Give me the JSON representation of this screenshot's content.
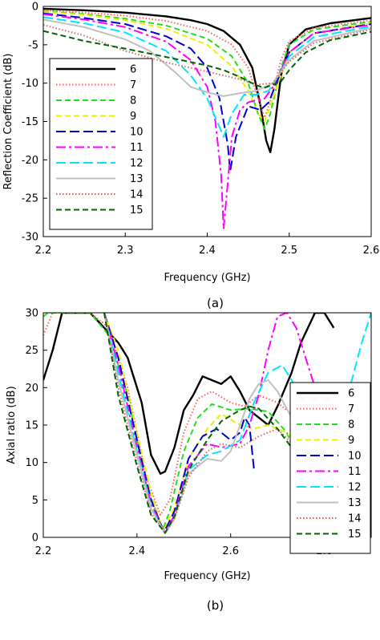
{
  "chart_data": [
    {
      "type": "line",
      "caption": "(a)",
      "xlabel": "Frequency (GHz)",
      "ylabel": "Reflection Coefficient (dB)",
      "xlim": [
        2.2,
        2.6
      ],
      "ylim": [
        -30,
        0
      ],
      "xticks": [
        "2.2",
        "2.3",
        "2.4",
        "2.5",
        "2.6"
      ],
      "yticks": [
        "0",
        "-5",
        "-10",
        "-15",
        "-20",
        "-25",
        "-30"
      ],
      "grid": false,
      "legend_position": "left",
      "series": [
        {
          "name": "6",
          "color": "#000000",
          "dash": "solid",
          "x": [
            2.2,
            2.25,
            2.3,
            2.35,
            2.38,
            2.4,
            2.42,
            2.44,
            2.455,
            2.465,
            2.472,
            2.477,
            2.482,
            2.49,
            2.5,
            2.52,
            2.55,
            2.6
          ],
          "y": [
            -0.3,
            -0.5,
            -0.8,
            -1.3,
            -1.8,
            -2.3,
            -3.2,
            -5,
            -8,
            -13,
            -17.5,
            -19,
            -16,
            -9,
            -5,
            -3,
            -2.2,
            -1.5
          ]
        },
        {
          "name": "7",
          "color": "#ff6060",
          "dash": "dotted",
          "x": [
            2.2,
            2.25,
            2.3,
            2.35,
            2.4,
            2.43,
            2.45,
            2.462,
            2.47,
            2.478,
            2.49,
            2.5,
            2.53,
            2.6
          ],
          "y": [
            -0.5,
            -0.8,
            -1.2,
            -1.9,
            -3.2,
            -5,
            -8,
            -12,
            -14.5,
            -12,
            -7,
            -4.5,
            -2.8,
            -1.8
          ]
        },
        {
          "name": "8",
          "color": "#22dd22",
          "dash": "dashed",
          "x": [
            2.2,
            2.25,
            2.3,
            2.35,
            2.4,
            2.43,
            2.45,
            2.462,
            2.47,
            2.477,
            2.49,
            2.5,
            2.53,
            2.6
          ],
          "y": [
            -0.6,
            -1,
            -1.6,
            -2.5,
            -4.2,
            -6.5,
            -10,
            -14,
            -16,
            -14,
            -8,
            -5,
            -3,
            -2
          ]
        },
        {
          "name": "9",
          "color": "#eeee00",
          "dash": "dashed",
          "x": [
            2.2,
            2.25,
            2.3,
            2.35,
            2.4,
            2.43,
            2.45,
            2.462,
            2.47,
            2.48,
            2.5,
            2.53,
            2.6
          ],
          "y": [
            -0.7,
            -1.1,
            -1.8,
            -2.9,
            -5,
            -7.8,
            -11,
            -14,
            -15,
            -12,
            -6,
            -3.5,
            -2.2
          ]
        },
        {
          "name": "10",
          "color": "#0000cc",
          "dash": "longdash",
          "x": [
            2.2,
            2.25,
            2.3,
            2.35,
            2.38,
            2.4,
            2.415,
            2.425,
            2.428,
            2.435,
            2.45,
            2.465,
            2.475,
            2.49,
            2.5,
            2.53,
            2.6
          ],
          "y": [
            -0.9,
            -1.5,
            -2.3,
            -3.9,
            -5.5,
            -8,
            -12,
            -18,
            -21.5,
            -17,
            -13,
            -13.5,
            -12.5,
            -8.5,
            -6,
            -3.5,
            -2.3
          ]
        },
        {
          "name": "11",
          "color": "#ff00ff",
          "dash": "dashdot",
          "x": [
            2.2,
            2.25,
            2.3,
            2.35,
            2.38,
            2.4,
            2.41,
            2.417,
            2.42,
            2.425,
            2.43,
            2.44,
            2.45,
            2.46,
            2.47,
            2.48,
            2.5,
            2.53,
            2.6
          ],
          "y": [
            -1,
            -1.7,
            -2.7,
            -4.6,
            -7,
            -10.5,
            -15,
            -22,
            -29,
            -23,
            -17,
            -13.5,
            -12.5,
            -12.2,
            -12,
            -10.5,
            -6,
            -3.5,
            -2.4
          ]
        },
        {
          "name": "12",
          "color": "#00e5ff",
          "dash": "longdash",
          "x": [
            2.2,
            2.25,
            2.3,
            2.35,
            2.38,
            2.4,
            2.41,
            2.42,
            2.43,
            2.445,
            2.46,
            2.475,
            2.49,
            2.5,
            2.53,
            2.6
          ],
          "y": [
            -1.4,
            -2.2,
            -3.4,
            -5.8,
            -9,
            -12,
            -14.5,
            -17,
            -14,
            -11.5,
            -11.5,
            -11,
            -8.5,
            -6.5,
            -4,
            -2.6
          ]
        },
        {
          "name": "13",
          "color": "#c0c0c0",
          "dash": "solid",
          "x": [
            2.2,
            2.25,
            2.3,
            2.33,
            2.36,
            2.38,
            2.4,
            2.42,
            2.44,
            2.46,
            2.48,
            2.5,
            2.53,
            2.6
          ],
          "y": [
            -1.7,
            -2.7,
            -4.3,
            -5.8,
            -8.5,
            -10.5,
            -11.2,
            -11.7,
            -11.3,
            -11,
            -10,
            -7,
            -4.5,
            -2.8
          ]
        },
        {
          "name": "14",
          "color": "#d46a6a",
          "dash": "dotted",
          "x": [
            2.2,
            2.25,
            2.3,
            2.35,
            2.4,
            2.44,
            2.46,
            2.48,
            2.5,
            2.53,
            2.6
          ],
          "y": [
            -2.4,
            -3.8,
            -5.8,
            -7.3,
            -8.5,
            -9.5,
            -10.2,
            -10,
            -7.2,
            -4.8,
            -3
          ]
        },
        {
          "name": "15",
          "color": "#006400",
          "dash": "dashed",
          "x": [
            2.2,
            2.25,
            2.3,
            2.35,
            2.4,
            2.42,
            2.44,
            2.46,
            2.47,
            2.49,
            2.5,
            2.52,
            2.55,
            2.6
          ],
          "y": [
            -3.2,
            -4.5,
            -5.5,
            -6.6,
            -7.7,
            -8.3,
            -9.2,
            -10.3,
            -10.6,
            -9.8,
            -8.3,
            -6,
            -4.4,
            -3.3
          ]
        }
      ]
    },
    {
      "type": "line",
      "caption": "(b)",
      "xlabel": "Frequency (GHz)",
      "ylabel": "Axial ratio (dB)",
      "xlim": [
        2.2,
        2.9
      ],
      "ylim": [
        0,
        30
      ],
      "xticks": [
        "2.2",
        "2.4",
        "2.6",
        "2.8"
      ],
      "yticks": [
        "0",
        "5",
        "10",
        "15",
        "20",
        "25",
        "30"
      ],
      "grid": false,
      "legend_position": "right",
      "series": [
        {
          "name": "6",
          "color": "#000000",
          "dash": "solid",
          "x": [
            2.2,
            2.22,
            2.24,
            2.3,
            2.33,
            2.36,
            2.38,
            2.41,
            2.43,
            2.45,
            2.46,
            2.48,
            2.5,
            2.52,
            2.54,
            2.56,
            2.58,
            2.6,
            2.62,
            2.64,
            2.66,
            2.68,
            2.7,
            2.73,
            2.75,
            2.78,
            2.8,
            2.82
          ],
          "y": [
            21,
            25,
            30,
            30,
            28,
            26,
            24,
            18,
            11,
            8.5,
            8.8,
            12,
            17,
            19,
            21.5,
            21,
            20.5,
            21.5,
            19.5,
            17,
            16,
            15,
            17.5,
            22,
            26,
            30,
            30,
            28
          ]
        },
        {
          "name": "7",
          "color": "#ff6060",
          "dash": "dotted",
          "x": [
            2.2,
            2.22,
            2.3,
            2.34,
            2.38,
            2.42,
            2.45,
            2.47,
            2.5,
            2.53,
            2.56,
            2.6,
            2.63,
            2.66,
            2.7,
            2.74,
            2.8
          ],
          "y": [
            27,
            30,
            30,
            28,
            20,
            8,
            3,
            5,
            14,
            18.5,
            19.5,
            18,
            17.5,
            19,
            18,
            16,
            13
          ]
        },
        {
          "name": "8",
          "color": "#22dd22",
          "dash": "dashed",
          "x": [
            2.2,
            2.21,
            2.3,
            2.34,
            2.38,
            2.42,
            2.455,
            2.47,
            2.5,
            2.53,
            2.56,
            2.6,
            2.64,
            2.68,
            2.72,
            2.76,
            2.8,
            2.83
          ],
          "y": [
            29.5,
            30,
            30,
            27,
            19,
            7,
            1,
            3.5,
            11.5,
            16,
            17.8,
            17,
            17.2,
            16.8,
            14,
            8,
            1.2,
            1
          ]
        },
        {
          "name": "9",
          "color": "#eeee00",
          "dash": "dashed",
          "x": [
            2.33,
            2.36,
            2.4,
            2.43,
            2.456,
            2.48,
            2.51,
            2.55,
            2.58,
            2.62,
            2.65,
            2.68,
            2.72,
            2.76,
            2.8
          ],
          "y": [
            30,
            25,
            14,
            6,
            0.8,
            4,
            10.5,
            14.5,
            16.5,
            15,
            14.5,
            15,
            14,
            11,
            8
          ]
        },
        {
          "name": "10",
          "color": "#0000cc",
          "dash": "longdash",
          "x": [
            2.33,
            2.36,
            2.4,
            2.43,
            2.458,
            2.48,
            2.51,
            2.54,
            2.57,
            2.6,
            2.62,
            2.63,
            2.64,
            2.645,
            2.65
          ],
          "y": [
            30,
            24,
            13,
            5,
            0.7,
            3.5,
            10.5,
            13.5,
            14.5,
            13,
            14,
            16,
            15,
            12,
            9
          ]
        },
        {
          "name": "11",
          "color": "#ff00ff",
          "dash": "dashdot",
          "x": [
            2.33,
            2.36,
            2.4,
            2.43,
            2.46,
            2.48,
            2.51,
            2.55,
            2.58,
            2.62,
            2.64,
            2.66,
            2.68,
            2.7,
            2.72,
            2.74,
            2.76,
            2.78
          ],
          "y": [
            30,
            23,
            12,
            4.5,
            0.6,
            3,
            9.5,
            12.5,
            12,
            12.5,
            15,
            19,
            25,
            29.5,
            30,
            28,
            24,
            20
          ]
        },
        {
          "name": "12",
          "color": "#00e5ff",
          "dash": "longdash",
          "x": [
            2.33,
            2.36,
            2.4,
            2.43,
            2.46,
            2.48,
            2.51,
            2.55,
            2.58,
            2.62,
            2.65,
            2.68,
            2.71,
            2.74,
            2.77,
            2.8,
            2.83,
            2.85,
            2.88,
            2.9
          ],
          "y": [
            30,
            22,
            11.5,
            4,
            0.5,
            2.5,
            9,
            11,
            11.5,
            13,
            18,
            22,
            23,
            20,
            16,
            13,
            14,
            19,
            26,
            30
          ]
        },
        {
          "name": "13",
          "color": "#c0c0c0",
          "dash": "solid",
          "x": [
            2.33,
            2.36,
            2.4,
            2.43,
            2.46,
            2.48,
            2.51,
            2.55,
            2.58,
            2.6,
            2.62,
            2.64,
            2.66,
            2.68,
            2.7,
            2.73,
            2.76
          ],
          "y": [
            30,
            21,
            11,
            3.8,
            0.5,
            2.5,
            8.5,
            10.5,
            10.2,
            11.5,
            15,
            18.5,
            20.5,
            21,
            19.5,
            16,
            13
          ]
        },
        {
          "name": "14",
          "color": "#d46a6a",
          "dash": "dotted",
          "x": [
            2.33,
            2.36,
            2.4,
            2.43,
            2.46,
            2.48,
            2.51,
            2.55,
            2.58,
            2.62,
            2.66,
            2.7,
            2.74,
            2.78
          ],
          "y": [
            30,
            20,
            10,
            3.2,
            0.6,
            2.5,
            8,
            11.5,
            12.5,
            12,
            13.5,
            14.5,
            12,
            10
          ]
        },
        {
          "name": "15",
          "color": "#006400",
          "dash": "dashed",
          "x": [
            2.33,
            2.36,
            2.4,
            2.43,
            2.46,
            2.48,
            2.51,
            2.55,
            2.58,
            2.62,
            2.64,
            2.66,
            2.7,
            2.73
          ],
          "y": [
            30,
            19,
            9.5,
            3,
            0.6,
            2.8,
            9,
            13,
            15.5,
            17,
            17.5,
            17.2,
            14.5,
            12
          ]
        }
      ]
    }
  ]
}
